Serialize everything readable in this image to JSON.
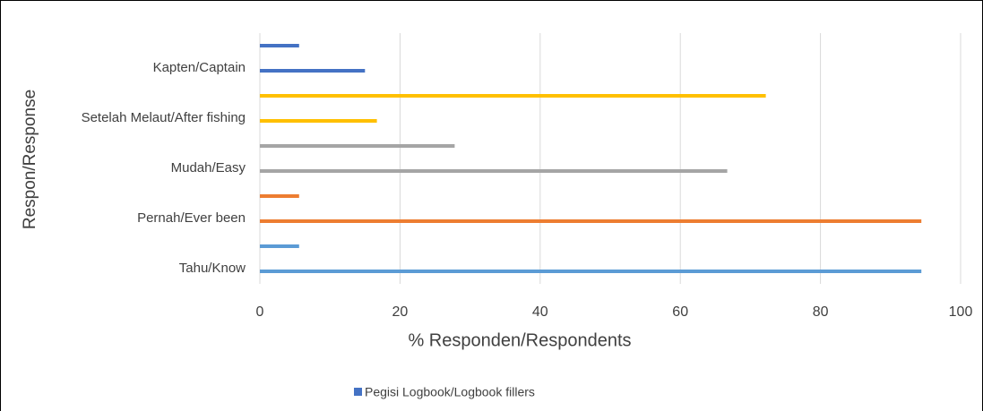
{
  "chart_data": {
    "type": "bar",
    "orientation": "horizontal",
    "categories": [
      "Tahu/Know",
      null,
      "Pernah/Ever been",
      null,
      "Mudah/Easy",
      null,
      "Setelah Melaut/After fishing",
      null,
      "Kapten/Captain",
      null
    ],
    "series": [
      {
        "name": "Pegisi Logbook/Logbook fillers",
        "color": "#4472c4",
        "values": [
          94.4,
          5.6,
          94.4,
          5.6,
          66.7,
          27.8,
          16.7,
          72.2,
          15,
          5.6
        ],
        "colors": [
          "#5b9bd5",
          "#5b9bd5",
          "#ed7d31",
          "#ed7d31",
          "#a5a5a5",
          "#a5a5a5",
          "#ffc000",
          "#ffc000",
          "#4472c4",
          "#4472c4"
        ]
      }
    ],
    "xlabel": "% Responden/Respondents",
    "ylabel": "Respon/Response",
    "xlim": [
      0,
      100
    ],
    "xticks": [
      0,
      20,
      40,
      60,
      80,
      100
    ],
    "grid": true,
    "legend": "bottom"
  }
}
